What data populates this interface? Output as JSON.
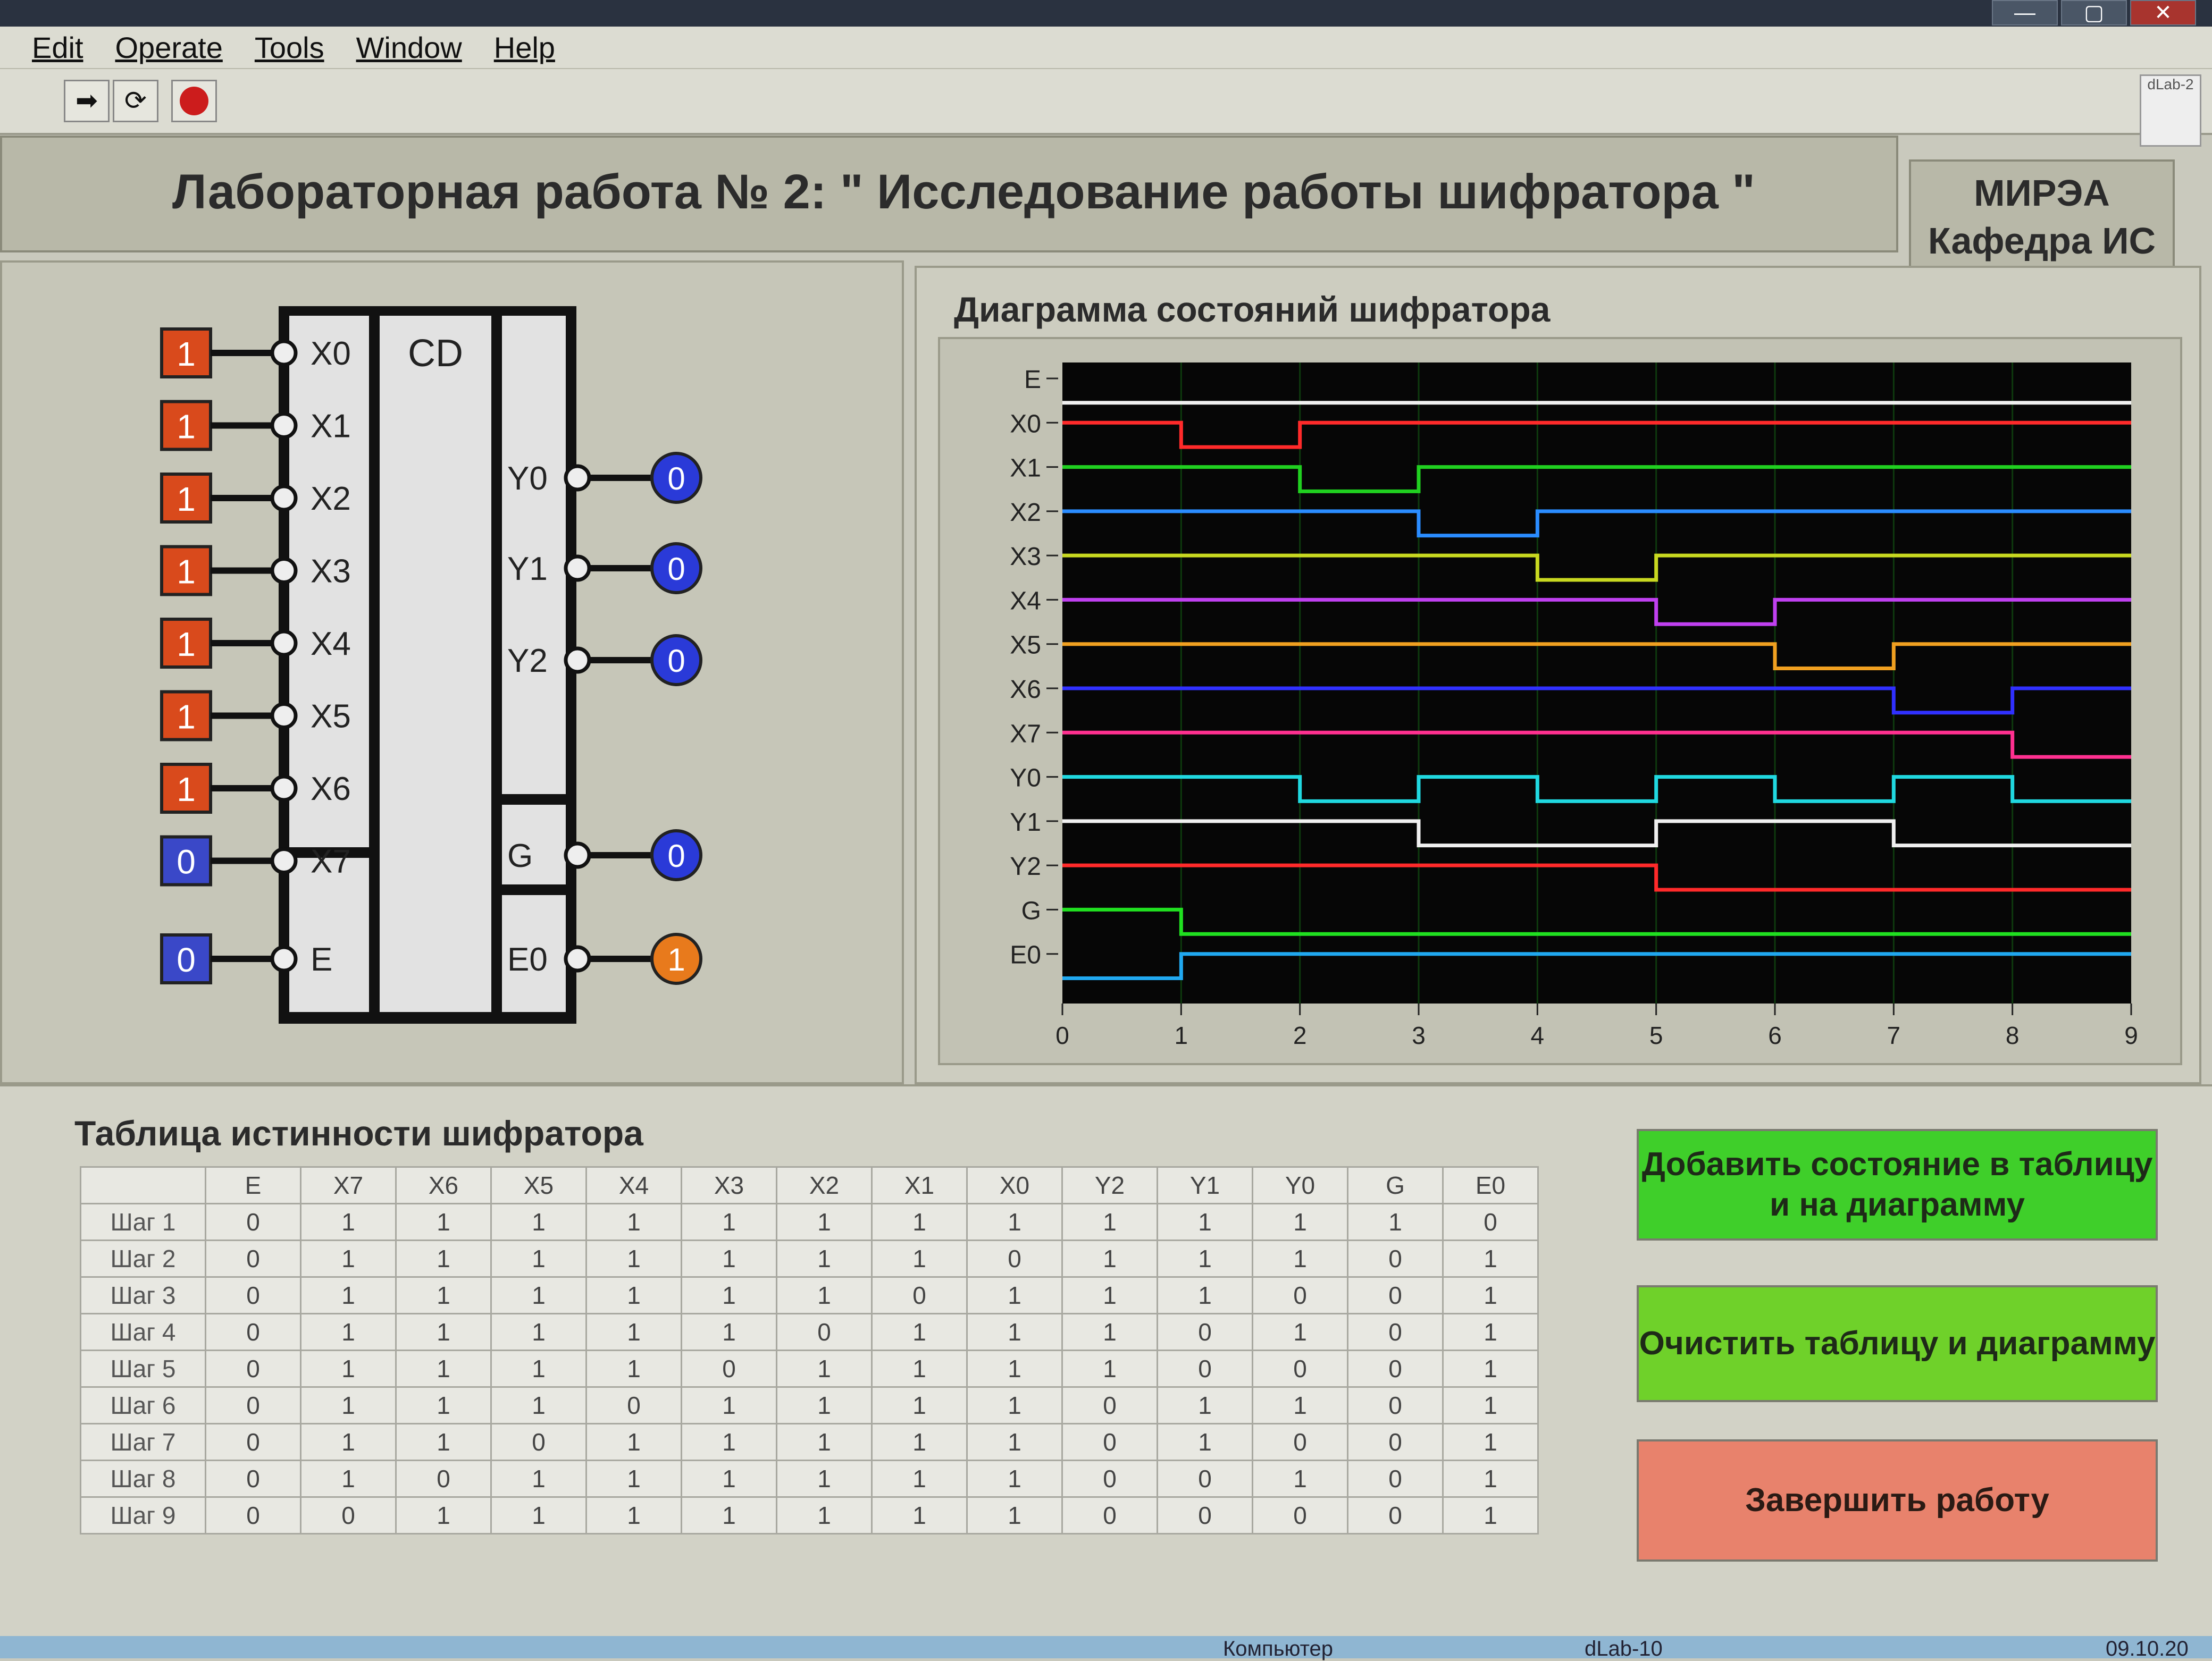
{
  "menu": [
    "Edit",
    "Operate",
    "Tools",
    "Window",
    "Help"
  ],
  "toolbar": {
    "run_icon": "run-arrow-icon",
    "run_cont_icon": "run-continuous-icon",
    "stop_icon": "stop-icon",
    "corner_label": "dLab-2"
  },
  "window_buttons": {
    "min": "—",
    "max": "▢",
    "close": "✕"
  },
  "header": {
    "title": "Лабораторная работа № 2: \" Исследование работы шифратора \"",
    "org_line1": "МИРЭА",
    "org_line2": "Кафедра ИС"
  },
  "encoder": {
    "block_label": "CD",
    "inputs": [
      {
        "name": "X0",
        "value": "1"
      },
      {
        "name": "X1",
        "value": "1"
      },
      {
        "name": "X2",
        "value": "1"
      },
      {
        "name": "X3",
        "value": "1"
      },
      {
        "name": "X4",
        "value": "1"
      },
      {
        "name": "X5",
        "value": "1"
      },
      {
        "name": "X6",
        "value": "1"
      },
      {
        "name": "X7",
        "value": "0"
      }
    ],
    "enable": {
      "name": "E",
      "value": "0"
    },
    "outputs": [
      {
        "name": "Y0",
        "value": "0"
      },
      {
        "name": "Y1",
        "value": "0"
      },
      {
        "name": "Y2",
        "value": "0"
      }
    ],
    "g": {
      "name": "G",
      "value": "0"
    },
    "e0": {
      "name": "E0",
      "value": "1"
    },
    "colors": {
      "high": "#d94a1c",
      "low": "#3a48c8",
      "led_low": "#2a3ad8",
      "led_high": "#e87a1c"
    }
  },
  "diagram": {
    "title": "Диаграмма состояний шифратора",
    "signals": [
      "E",
      "X0",
      "X1",
      "X2",
      "X3",
      "X4",
      "X5",
      "X6",
      "X7",
      "Y0",
      "Y1",
      "Y2",
      "G",
      "E0"
    ],
    "colors": [
      "#f0f0f0",
      "#ff2a2a",
      "#20d020",
      "#2a8cff",
      "#c8d820",
      "#c040f0",
      "#f0a020",
      "#3030ff",
      "#ff3090",
      "#20d8e0",
      "#f0f0f0",
      "#ff2a2a",
      "#20e020",
      "#20a8f0"
    ],
    "x_ticks": [
      "0",
      "1",
      "2",
      "3",
      "4",
      "5",
      "6",
      "7",
      "8",
      "9"
    ]
  },
  "chart_data": {
    "type": "line",
    "title": "Диаграмма состояний шифратора",
    "xlabel": "",
    "ylabel": "",
    "xlim": [
      0,
      9
    ],
    "x": [
      0,
      1,
      2,
      3,
      4,
      5,
      6,
      7,
      8,
      9
    ],
    "series": [
      {
        "name": "E",
        "values": [
          0,
          0,
          0,
          0,
          0,
          0,
          0,
          0,
          0,
          0
        ]
      },
      {
        "name": "X0",
        "values": [
          1,
          0,
          1,
          1,
          1,
          1,
          1,
          1,
          1,
          1
        ]
      },
      {
        "name": "X1",
        "values": [
          1,
          1,
          0,
          1,
          1,
          1,
          1,
          1,
          1,
          1
        ]
      },
      {
        "name": "X2",
        "values": [
          1,
          1,
          1,
          0,
          1,
          1,
          1,
          1,
          1,
          1
        ]
      },
      {
        "name": "X3",
        "values": [
          1,
          1,
          1,
          1,
          0,
          1,
          1,
          1,
          1,
          1
        ]
      },
      {
        "name": "X4",
        "values": [
          1,
          1,
          1,
          1,
          1,
          0,
          1,
          1,
          1,
          1
        ]
      },
      {
        "name": "X5",
        "values": [
          1,
          1,
          1,
          1,
          1,
          1,
          0,
          1,
          1,
          1
        ]
      },
      {
        "name": "X6",
        "values": [
          1,
          1,
          1,
          1,
          1,
          1,
          1,
          0,
          1,
          1
        ]
      },
      {
        "name": "X7",
        "values": [
          1,
          1,
          1,
          1,
          1,
          1,
          1,
          1,
          0,
          0
        ]
      },
      {
        "name": "Y0",
        "values": [
          1,
          1,
          0,
          1,
          0,
          1,
          0,
          1,
          0,
          0
        ]
      },
      {
        "name": "Y1",
        "values": [
          1,
          1,
          1,
          0,
          0,
          1,
          1,
          0,
          0,
          0
        ]
      },
      {
        "name": "Y2",
        "values": [
          1,
          1,
          1,
          1,
          1,
          0,
          0,
          0,
          0,
          0
        ]
      },
      {
        "name": "G",
        "values": [
          1,
          0,
          0,
          0,
          0,
          0,
          0,
          0,
          0,
          0
        ]
      },
      {
        "name": "E0",
        "values": [
          0,
          1,
          1,
          1,
          1,
          1,
          1,
          1,
          1,
          1
        ]
      }
    ]
  },
  "truth_table": {
    "title": "Таблица истинности шифратора",
    "columns": [
      "",
      "E",
      "X7",
      "X6",
      "X5",
      "X4",
      "X3",
      "X2",
      "X1",
      "X0",
      "Y2",
      "Y1",
      "Y0",
      "G",
      "E0"
    ],
    "rows": [
      [
        "Шаг 1",
        "0",
        "1",
        "1",
        "1",
        "1",
        "1",
        "1",
        "1",
        "1",
        "1",
        "1",
        "1",
        "1",
        "0"
      ],
      [
        "Шаг 2",
        "0",
        "1",
        "1",
        "1",
        "1",
        "1",
        "1",
        "1",
        "0",
        "1",
        "1",
        "1",
        "0",
        "1"
      ],
      [
        "Шаг 3",
        "0",
        "1",
        "1",
        "1",
        "1",
        "1",
        "1",
        "0",
        "1",
        "1",
        "1",
        "0",
        "0",
        "1"
      ],
      [
        "Шаг 4",
        "0",
        "1",
        "1",
        "1",
        "1",
        "1",
        "0",
        "1",
        "1",
        "1",
        "0",
        "1",
        "0",
        "1"
      ],
      [
        "Шаг 5",
        "0",
        "1",
        "1",
        "1",
        "1",
        "0",
        "1",
        "1",
        "1",
        "1",
        "0",
        "0",
        "0",
        "1"
      ],
      [
        "Шаг 6",
        "0",
        "1",
        "1",
        "1",
        "0",
        "1",
        "1",
        "1",
        "1",
        "0",
        "1",
        "1",
        "0",
        "1"
      ],
      [
        "Шаг 7",
        "0",
        "1",
        "1",
        "0",
        "1",
        "1",
        "1",
        "1",
        "1",
        "0",
        "1",
        "0",
        "0",
        "1"
      ],
      [
        "Шаг 8",
        "0",
        "1",
        "0",
        "1",
        "1",
        "1",
        "1",
        "1",
        "1",
        "0",
        "0",
        "1",
        "0",
        "1"
      ],
      [
        "Шаг 9",
        "0",
        "0",
        "1",
        "1",
        "1",
        "1",
        "1",
        "1",
        "1",
        "0",
        "0",
        "0",
        "0",
        "1"
      ]
    ]
  },
  "buttons": {
    "add": "Добавить состояние в таблицу и на диаграмму",
    "clear": "Очистить таблицу и диаграмму",
    "finish": "Завершить работу"
  },
  "taskbar": {
    "item1": "Компьютер",
    "item2": "dLab-10",
    "date": "09.10.20"
  }
}
